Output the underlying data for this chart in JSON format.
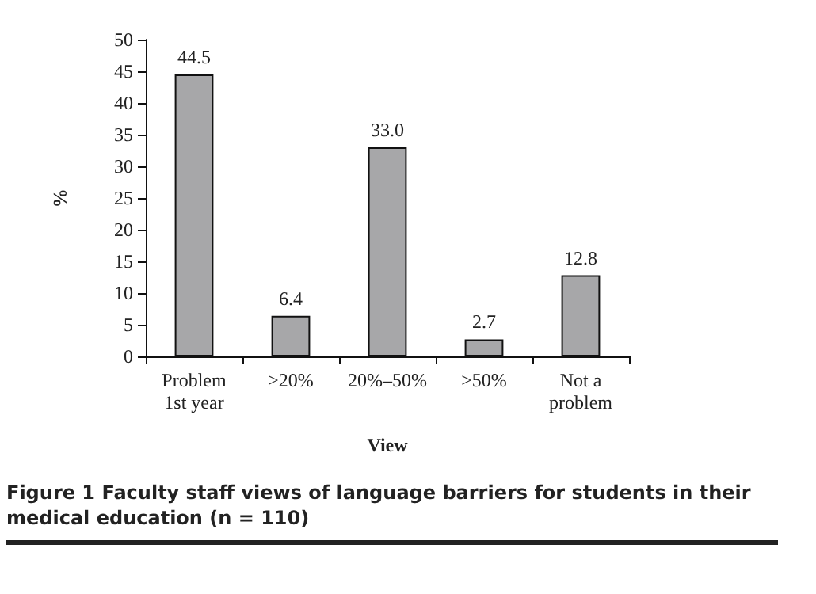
{
  "chart_data": {
    "type": "bar",
    "xlabel": "View",
    "ylabel": "%",
    "categories": [
      "Problem\n1st year",
      ">20%",
      "20%–50%",
      ">50%",
      "Not a\nproblem"
    ],
    "values": [
      44.5,
      6.4,
      33.0,
      2.7,
      12.8
    ],
    "color": "#a7a7a9",
    "value_labels": [
      "44.5",
      "6.4",
      "33.0",
      "2.7",
      "12.8"
    ],
    "ylim": [
      0,
      50
    ],
    "yticks": [
      0,
      5,
      10,
      15,
      20,
      25,
      30,
      35,
      40,
      45,
      50
    ],
    "grid": false,
    "annotations": [
      "Figure 1 Faculty staff views of language barriers for students in their medical education (n = 110)"
    ]
  }
}
